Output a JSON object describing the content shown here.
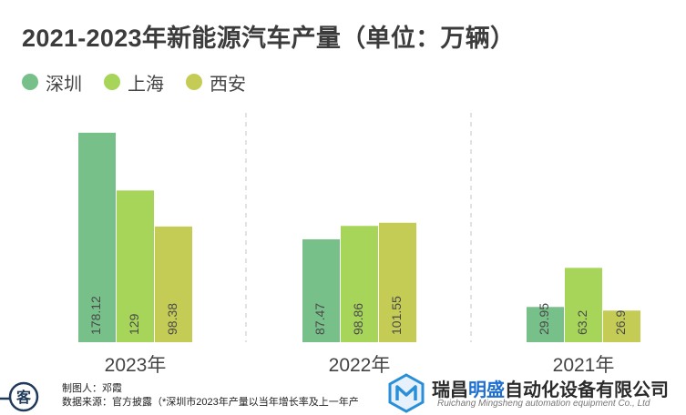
{
  "chart_data": {
    "type": "bar",
    "title": "2021-2023年新能源汽车产量（单位：万辆）",
    "categories": [
      "2023年",
      "2022年",
      "2021年"
    ],
    "series": [
      {
        "name": "深圳",
        "color": "#77c08a",
        "values": [
          178.12,
          87.47,
          29.95
        ],
        "labels": [
          "178.12",
          "87.47",
          "29.95"
        ]
      },
      {
        "name": "上海",
        "color": "#a6d55a",
        "values": [
          129,
          98.86,
          63.2
        ],
        "labels": [
          "129",
          "98.86",
          "63.2"
        ]
      },
      {
        "name": "西安",
        "color": "#c5cc56",
        "values": [
          98.38,
          101.55,
          26.9
        ],
        "labels": [
          "98.38",
          "101.55",
          "26.9"
        ]
      }
    ],
    "ylim": [
      0,
      195
    ],
    "grid": false,
    "separators": "dashed",
    "legend_position": "top-left",
    "value_labels": "inside-bottom-vertical"
  },
  "footer": {
    "creator": "制图人：邓霞",
    "source": "数据来源：官方披露（*深圳市2023年产量以当年增长率及上一年产",
    "stamp_text": "客",
    "company_name_a": "瑞昌",
    "company_name_hl": "明盛",
    "company_name_b": "自动化设备有限公司",
    "company_en": "Ruichang Mingsheng automation equipment Co., Ltd",
    "logo_icon": "company-logo-icon",
    "stamp_icon": "stamp-icon"
  }
}
